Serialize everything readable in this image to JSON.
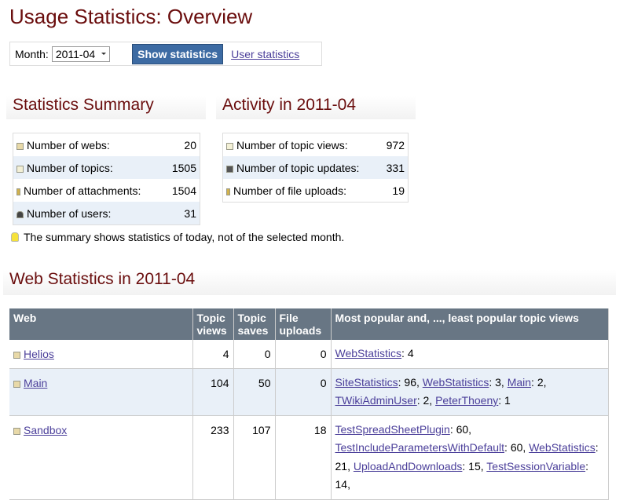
{
  "header": {
    "title": "Usage Statistics: Overview"
  },
  "controls": {
    "month_label": "Month:",
    "month_value": "2011-04",
    "button": "Show statistics",
    "link": "User statistics"
  },
  "summary": {
    "title": "Statistics Summary",
    "rows": [
      {
        "label": "Number of webs:",
        "value": 20,
        "icon": "folder"
      },
      {
        "label": "Number of topics:",
        "value": 1505,
        "icon": "page"
      },
      {
        "label": "Number of attachments:",
        "value": 1504,
        "icon": "clip"
      },
      {
        "label": "Number of users:",
        "value": 31,
        "icon": "user"
      }
    ]
  },
  "activity": {
    "title": "Activity in 2011-04",
    "rows": [
      {
        "label": "Number of topic views:",
        "value": 972,
        "icon": "page"
      },
      {
        "label": "Number of topic updates:",
        "value": 331,
        "icon": "save"
      },
      {
        "label": "Number of file uploads:",
        "value": 19,
        "icon": "clip"
      }
    ]
  },
  "note": "The summary shows statistics of today, not of the selected month.",
  "web_stats": {
    "title": "Web Statistics in 2011-04",
    "headers": [
      "Web",
      "Topic views",
      "Topic saves",
      "File uploads",
      "Most popular and, ..., least popular topic views"
    ],
    "rows": [
      {
        "web": "Helios",
        "views": 4,
        "saves": 0,
        "uploads": 0,
        "popular": [
          {
            "link": "WebStatistics",
            "suffix": ": 4"
          }
        ]
      },
      {
        "web": "Main",
        "views": 104,
        "saves": 50,
        "uploads": 0,
        "popular": [
          {
            "link": "SiteStatistics",
            "suffix": ": 96,"
          },
          {
            "link": "WebStatistics",
            "suffix": ": 3,"
          },
          {
            "link": "Main",
            "suffix": ": 2,"
          },
          {
            "link": "TWikiAdminUser",
            "suffix": ": 2,"
          },
          {
            "link": "PeterThoeny",
            "suffix": ": 1"
          }
        ]
      },
      {
        "web": "Sandbox",
        "views": 233,
        "saves": 107,
        "uploads": 18,
        "popular": [
          {
            "link": "TestSpreadSheetPlugin",
            "suffix": ": 60,"
          },
          {
            "link": "TestIncludeParametersWithDefault",
            "suffix": ": 60,"
          },
          {
            "link": "WebStatistics",
            "suffix": ": 21,"
          },
          {
            "link": "UploadAndDownloads",
            "suffix": ": 15,"
          },
          {
            "link": "TestSessionVariable",
            "suffix": ": 14,"
          }
        ]
      }
    ]
  }
}
